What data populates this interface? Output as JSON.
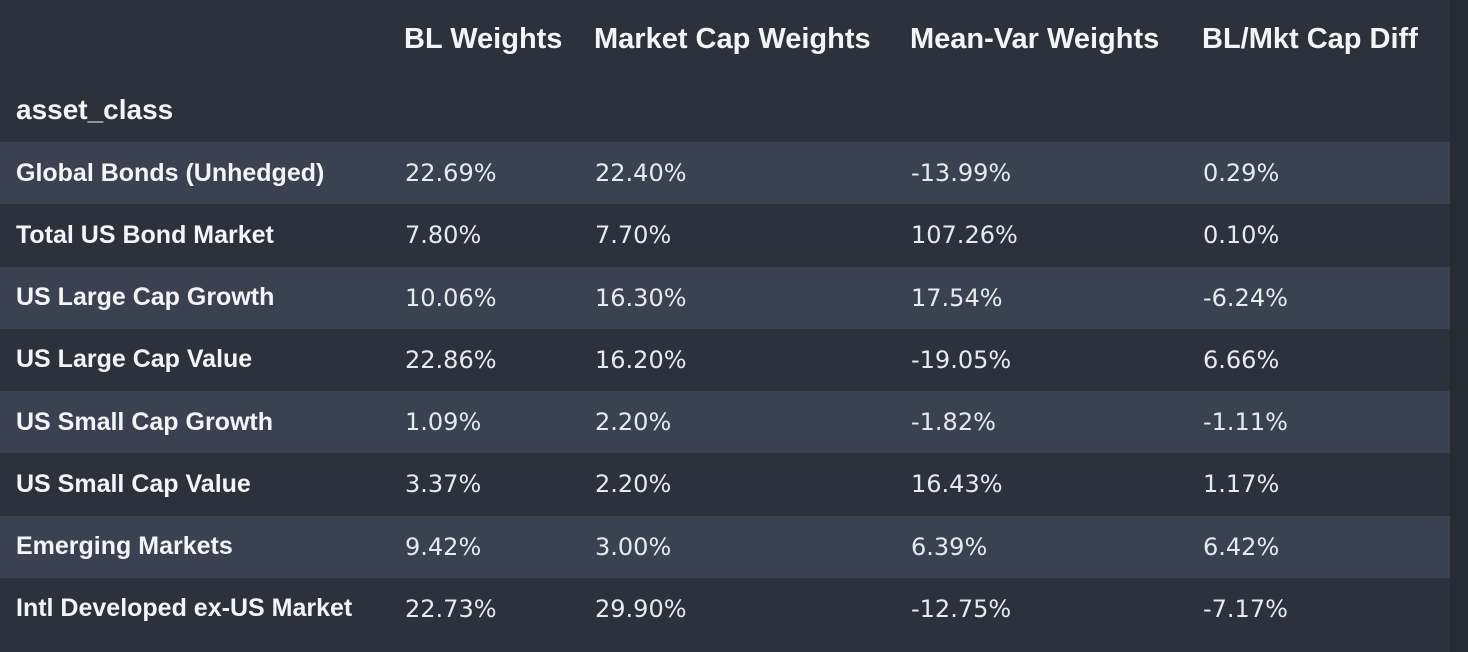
{
  "table": {
    "index_name": "asset_class",
    "columns": [
      "BL Weights",
      "Market Cap Weights",
      "Mean-Var Weights",
      "BL/Mkt Cap Diff"
    ],
    "rows": [
      {
        "asset_class": "Global Bonds (Unhedged)",
        "values": [
          "22.69%",
          "22.40%",
          "-13.99%",
          "0.29%"
        ]
      },
      {
        "asset_class": "Total US Bond Market",
        "values": [
          "7.80%",
          "7.70%",
          "107.26%",
          "0.10%"
        ]
      },
      {
        "asset_class": "US Large Cap Growth",
        "values": [
          "10.06%",
          "16.30%",
          "17.54%",
          "-6.24%"
        ]
      },
      {
        "asset_class": "US Large Cap Value",
        "values": [
          "22.86%",
          "16.20%",
          "-19.05%",
          "6.66%"
        ]
      },
      {
        "asset_class": "US Small Cap Growth",
        "values": [
          "1.09%",
          "2.20%",
          "-1.82%",
          "-1.11%"
        ]
      },
      {
        "asset_class": "US Small Cap Value",
        "values": [
          "3.37%",
          "2.20%",
          "16.43%",
          "1.17%"
        ]
      },
      {
        "asset_class": "Emerging Markets",
        "values": [
          "9.42%",
          "3.00%",
          "6.39%",
          "6.42%"
        ]
      },
      {
        "asset_class": "Intl Developed ex-US Market",
        "values": [
          "22.73%",
          "29.90%",
          "-12.75%",
          "-7.17%"
        ]
      }
    ]
  },
  "colors": {
    "background": "#2c313c",
    "row_stripe": "#3a4252",
    "text": "#e6e9ee"
  }
}
